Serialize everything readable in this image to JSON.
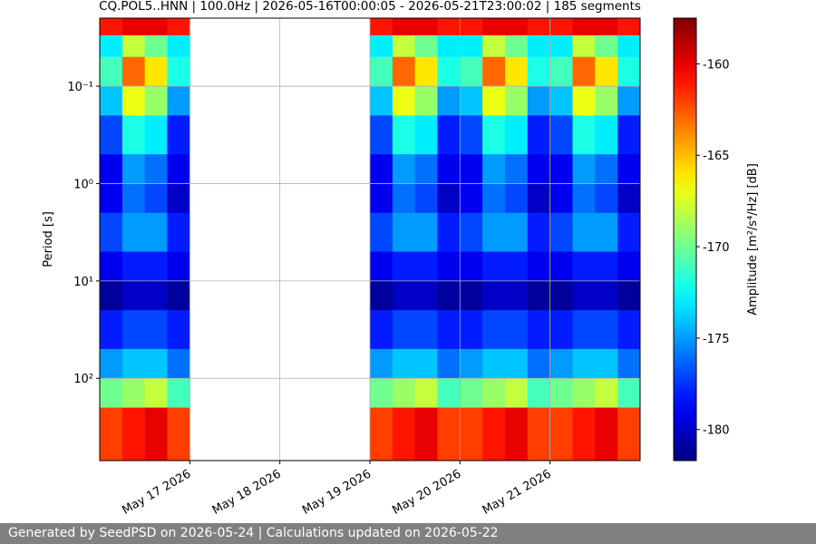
{
  "chart_data": {
    "type": "spectrogram",
    "title": "CQ.POL5..HNN | 100.0Hz | 2026-05-16T00:00:05 - 2026-05-21T23:00:02 | 185 segments",
    "ylabel": "Period [s]",
    "colorbar_label": "Amplitude [m²/s⁴/Hz] [dB]",
    "colormap": "jet",
    "log_y": true,
    "grid": true,
    "xlim": [
      "2026-05-16T00:00",
      "2026-05-22T00:00"
    ],
    "xticks": [
      {
        "value": "2026-05-17T00:00",
        "label": "May 17 2026"
      },
      {
        "value": "2026-05-18T00:00",
        "label": "May 18 2026"
      },
      {
        "value": "2026-05-19T00:00",
        "label": "May 19 2026"
      },
      {
        "value": "2026-05-20T00:00",
        "label": "May 20 2026"
      },
      {
        "value": "2026-05-21T00:00",
        "label": "May 21 2026"
      }
    ],
    "ylim": [
      700,
      0.02
    ],
    "yticks": [
      {
        "value": 0.1,
        "label": "10⁻¹"
      },
      {
        "value": 1,
        "label": "10⁰"
      },
      {
        "value": 10,
        "label": "10¹"
      },
      {
        "value": 100,
        "label": "10²"
      }
    ],
    "clim": [
      -181.7,
      -157.5
    ],
    "cticks": [
      -160,
      -165,
      -170,
      -175,
      -180
    ],
    "xbins": [
      "2026-05-16T00:00",
      "2026-05-16T06:00",
      "2026-05-16T12:00",
      "2026-05-16T18:00",
      "2026-05-17T00:00",
      "2026-05-17T06:00",
      "2026-05-17T12:00",
      "2026-05-17T18:00",
      "2026-05-18T00:00",
      "2026-05-18T06:00",
      "2026-05-18T12:00",
      "2026-05-18T18:00",
      "2026-05-19T00:00",
      "2026-05-19T06:00",
      "2026-05-19T12:00",
      "2026-05-19T18:00",
      "2026-05-20T00:00",
      "2026-05-20T06:00",
      "2026-05-20T12:00",
      "2026-05-20T18:00",
      "2026-05-21T00:00",
      "2026-05-21T06:00",
      "2026-05-21T12:00",
      "2026-05-21T18:00",
      "2026-05-22T00:00"
    ],
    "ybins": [
      0.02,
      0.03,
      0.05,
      0.1,
      0.2,
      0.5,
      1,
      2,
      5,
      10,
      20,
      50,
      100,
      200,
      700
    ],
    "z": [
      [
        -161,
        -160,
        -160,
        -161,
        null,
        null,
        null,
        null,
        null,
        null,
        null,
        null,
        -161,
        -160,
        -160,
        -161,
        -161,
        -160,
        -160,
        -161,
        -161,
        -160,
        -160,
        -161
      ],
      [
        -173,
        -168,
        -170,
        -173,
        null,
        null,
        null,
        null,
        null,
        null,
        null,
        null,
        -173,
        -168,
        -170,
        -173,
        -173,
        -168,
        -170,
        -173,
        -173,
        -168,
        -170,
        -173
      ],
      [
        -171,
        -163,
        -166,
        -172,
        null,
        null,
        null,
        null,
        null,
        null,
        null,
        null,
        -171,
        -163,
        -166,
        -172,
        -171,
        -163,
        -166,
        -172,
        -171,
        -163,
        -166,
        -172
      ],
      [
        -174,
        -167,
        -169,
        -175,
        null,
        null,
        null,
        null,
        null,
        null,
        null,
        null,
        -174,
        -167,
        -169,
        -175,
        -174,
        -167,
        -169,
        -175,
        -174,
        -167,
        -169,
        -175
      ],
      [
        -177,
        -172,
        -173,
        -178,
        null,
        null,
        null,
        null,
        null,
        null,
        null,
        null,
        -177,
        -172,
        -173,
        -178,
        -177,
        -172,
        -173,
        -178,
        -177,
        -172,
        -173,
        -178
      ],
      [
        -179,
        -175,
        -176,
        -179,
        null,
        null,
        null,
        null,
        null,
        null,
        null,
        null,
        -179,
        -175,
        -176,
        -179,
        -179,
        -175,
        -176,
        -179,
        -179,
        -175,
        -176,
        -179
      ],
      [
        -179,
        -176,
        -177,
        -180,
        null,
        null,
        null,
        null,
        null,
        null,
        null,
        null,
        -179,
        -176,
        -177,
        -180,
        -179,
        -176,
        -177,
        -180,
        -179,
        -176,
        -177,
        -180
      ],
      [
        -177,
        -175,
        -175,
        -178,
        null,
        null,
        null,
        null,
        null,
        null,
        null,
        null,
        -177,
        -175,
        -175,
        -178,
        -177,
        -175,
        -175,
        -178,
        -177,
        -175,
        -175,
        -178
      ],
      [
        -179,
        -178,
        -178,
        -179,
        null,
        null,
        null,
        null,
        null,
        null,
        null,
        null,
        -179,
        -178,
        -178,
        -179,
        -179,
        -178,
        -178,
        -179,
        -179,
        -178,
        -178,
        -179
      ],
      [
        -181,
        -180,
        -180,
        -181,
        null,
        null,
        null,
        null,
        null,
        null,
        null,
        null,
        -181,
        -180,
        -180,
        -181,
        -181,
        -180,
        -180,
        -181,
        -181,
        -180,
        -180,
        -181
      ],
      [
        -178,
        -177,
        -177,
        -178,
        null,
        null,
        null,
        null,
        null,
        null,
        null,
        null,
        -178,
        -177,
        -177,
        -178,
        -178,
        -177,
        -177,
        -178,
        -178,
        -177,
        -177,
        -178
      ],
      [
        -175,
        -174,
        -174,
        -176,
        null,
        null,
        null,
        null,
        null,
        null,
        null,
        null,
        -175,
        -174,
        -174,
        -176,
        -175,
        -174,
        -174,
        -176,
        -175,
        -174,
        -174,
        -176
      ],
      [
        -170,
        -169,
        -168,
        -171,
        null,
        null,
        null,
        null,
        null,
        null,
        null,
        null,
        -170,
        -169,
        -168,
        -171,
        -170,
        -169,
        -168,
        -171,
        -170,
        -169,
        -168,
        -171
      ],
      [
        -162,
        -161,
        -160,
        -162,
        null,
        null,
        null,
        null,
        null,
        null,
        null,
        null,
        -162,
        -161,
        -160,
        -162,
        -162,
        -161,
        -160,
        -162,
        -162,
        -161,
        -160,
        -162
      ]
    ]
  },
  "footer": {
    "text": "Generated by SeedPSD on 2026-05-24 | Calculations updated on 2026-05-22"
  }
}
